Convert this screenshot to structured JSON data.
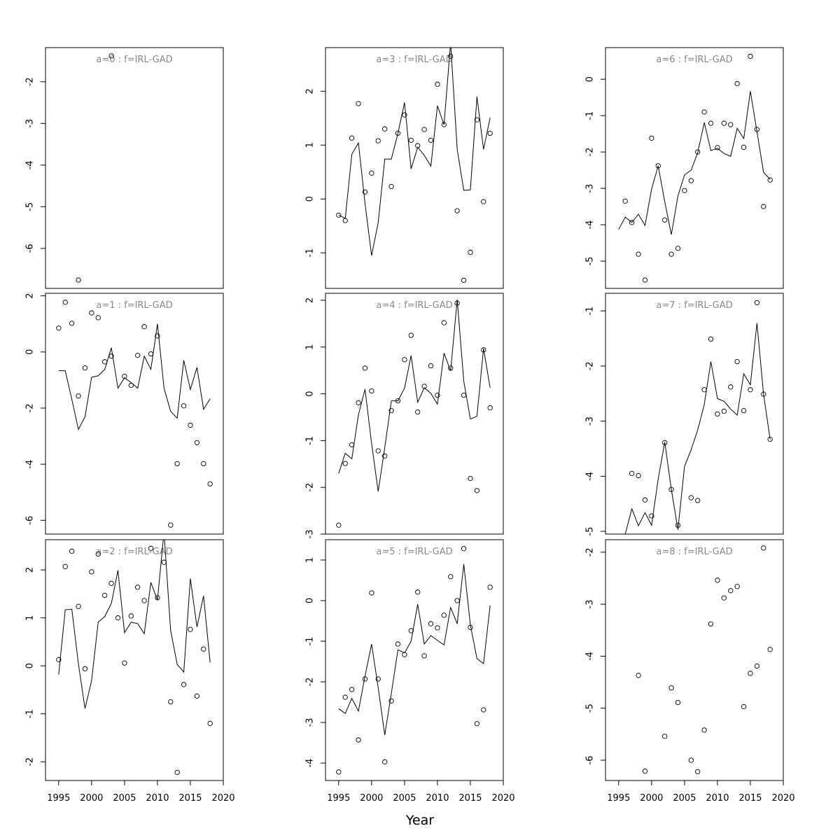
{
  "xlabel": "Year",
  "chart_data": [
    {
      "type": "line",
      "title": "a=0 : f=IRL-GAD",
      "x": [
        1995,
        1996,
        1997,
        1998,
        1999,
        2000,
        2001,
        2002,
        2003,
        2004,
        2005,
        2006,
        2007,
        2008,
        2009,
        2010,
        2011,
        2012,
        2013,
        2014,
        2015,
        2016,
        2017,
        2018
      ],
      "points": [
        null,
        null,
        null,
        -6.76,
        null,
        null,
        null,
        null,
        -1.38,
        null,
        null,
        null,
        null,
        null,
        null,
        null,
        null,
        null,
        null,
        null,
        null,
        null,
        null,
        null
      ],
      "xlim": [
        1993,
        2020
      ],
      "ylim": [
        -6.96,
        -1.18
      ],
      "yticks": [
        -6,
        -5,
        -4,
        -3,
        -2
      ]
    },
    {
      "type": "line",
      "title": "a=1 : f=IRL-GAD",
      "x": [
        1995,
        1996,
        1997,
        1998,
        1999,
        2000,
        2001,
        2002,
        2003,
        2004,
        2005,
        2006,
        2007,
        2008,
        2009,
        2010,
        2011,
        2012,
        2013,
        2014,
        2015,
        2016,
        2017,
        2018
      ],
      "points": [
        0.85,
        1.77,
        1.02,
        -1.57,
        -0.57,
        1.39,
        1.22,
        -0.35,
        -0.15,
        null,
        -0.87,
        -1.19,
        -0.12,
        0.9,
        -0.07,
        0.57,
        null,
        -6.17,
        -3.98,
        -1.92,
        -2.61,
        -3.23,
        -3.98,
        -4.7
      ],
      "fitted": [
        -0.67,
        -0.67,
        -1.69,
        -2.76,
        -2.31,
        -0.9,
        -0.85,
        -0.62,
        0.15,
        -1.29,
        -0.92,
        -1.09,
        -1.29,
        -0.15,
        -0.62,
        1.0,
        -1.29,
        -2.11,
        -2.36,
        -0.3,
        -1.34,
        -0.55,
        -2.04,
        -1.67
      ],
      "xlim": [
        1993,
        2020
      ],
      "ylim": [
        -6.49,
        2.09
      ],
      "yticks": [
        -6,
        -4,
        -2,
        0,
        2
      ]
    },
    {
      "type": "line",
      "title": "a=2 : f=IRL-GAD",
      "x": [
        1995,
        1996,
        1997,
        1998,
        1999,
        2000,
        2001,
        2002,
        2003,
        2004,
        2005,
        2006,
        2007,
        2008,
        2009,
        2010,
        2011,
        2012,
        2013,
        2014,
        2015,
        2016,
        2017,
        2018
      ],
      "points": [
        0.13,
        2.07,
        2.39,
        1.24,
        -0.06,
        1.96,
        2.33,
        1.47,
        1.72,
        1.0,
        0.06,
        1.04,
        1.64,
        1.36,
        2.45,
        1.42,
        2.16,
        -0.75,
        -2.22,
        -0.39,
        0.76,
        -0.63,
        0.35,
        -1.2
      ],
      "fitted": [
        -0.18,
        1.17,
        1.18,
        0.04,
        -0.89,
        -0.31,
        0.91,
        1.03,
        1.3,
        1.99,
        0.69,
        0.91,
        0.88,
        0.67,
        1.74,
        1.37,
        2.79,
        0.74,
        0.03,
        -0.13,
        1.82,
        0.81,
        1.46,
        0.07
      ],
      "xlim": [
        1993,
        2020
      ],
      "xticks": [
        1995,
        2000,
        2005,
        2010,
        2015,
        2020
      ],
      "ylim": [
        -2.39,
        2.63
      ],
      "yticks": [
        -2,
        -1,
        0,
        1,
        2
      ]
    },
    {
      "type": "line",
      "title": "a=3 : f=IRL-GAD",
      "x": [
        1995,
        1996,
        1997,
        1998,
        1999,
        2000,
        2001,
        2002,
        2003,
        2004,
        2005,
        2006,
        2007,
        2008,
        2009,
        2010,
        2011,
        2012,
        2013,
        2014,
        2015,
        2016,
        2017,
        2018
      ],
      "points": [
        -0.3,
        -0.4,
        1.13,
        1.77,
        0.13,
        0.48,
        1.08,
        1.3,
        0.23,
        1.22,
        1.56,
        1.09,
        0.99,
        1.29,
        1.09,
        2.13,
        1.38,
        2.65,
        -0.22,
        -1.51,
        -0.99,
        1.47,
        -0.05,
        1.22
      ],
      "fitted": [
        -0.3,
        -0.36,
        0.83,
        1.04,
        -0.08,
        -1.05,
        -0.44,
        0.74,
        0.74,
        1.22,
        1.79,
        0.56,
        0.96,
        0.81,
        0.61,
        1.73,
        1.38,
        2.9,
        0.92,
        0.16,
        0.17,
        1.9,
        0.92,
        1.51
      ],
      "xlim": [
        1993,
        2020
      ],
      "ylim": [
        -1.66,
        2.81
      ],
      "yticks": [
        -1,
        0,
        1,
        2
      ]
    },
    {
      "type": "line",
      "title": "a=4 : f=IRL-GAD",
      "x": [
        1995,
        1996,
        1997,
        1998,
        1999,
        2000,
        2001,
        2002,
        2003,
        2004,
        2005,
        2006,
        2007,
        2008,
        2009,
        2010,
        2011,
        2012,
        2013,
        2014,
        2015,
        2016,
        2017,
        2018
      ],
      "points": [
        -2.81,
        -1.49,
        -1.09,
        -0.19,
        0.55,
        0.06,
        -1.22,
        -1.33,
        -0.36,
        -0.15,
        0.73,
        1.25,
        -0.39,
        0.16,
        0.6,
        -0.03,
        1.52,
        0.55,
        1.94,
        -0.03,
        -1.81,
        -2.07,
        0.94,
        -0.3
      ],
      "fitted": [
        -1.7,
        -1.27,
        -1.39,
        -0.45,
        0.1,
        -1.06,
        -2.09,
        -1.15,
        -0.15,
        -0.15,
        0.12,
        0.82,
        -0.18,
        0.13,
        0.01,
        -0.22,
        0.87,
        0.49,
        2.01,
        0.27,
        -0.54,
        -0.48,
        0.97,
        0.13
      ],
      "xlim": [
        1993,
        2020
      ],
      "ylim": [
        -3,
        2.15
      ],
      "yticks": [
        -3,
        -2,
        -1,
        0,
        1,
        2
      ]
    },
    {
      "type": "line",
      "title": "a=5 : f=IRL-GAD",
      "x": [
        1995,
        1996,
        1997,
        1998,
        1999,
        2000,
        2001,
        2002,
        2003,
        2004,
        2005,
        2006,
        2007,
        2008,
        2009,
        2010,
        2011,
        2012,
        2013,
        2014,
        2015,
        2016,
        2017,
        2018
      ],
      "points": [
        -4.22,
        -2.38,
        -2.19,
        -3.43,
        -1.93,
        0.19,
        -1.93,
        -3.97,
        -2.47,
        -1.07,
        -1.33,
        -0.74,
        0.21,
        -1.36,
        -0.57,
        -0.67,
        -0.36,
        0.59,
        0.0,
        1.28,
        -0.66,
        -3.03,
        -2.69,
        0.33
      ],
      "fitted": [
        -2.66,
        -2.78,
        -2.41,
        -2.72,
        -1.86,
        -1.07,
        -2.14,
        -3.31,
        -2.28,
        -1.21,
        -1.29,
        -1.0,
        -0.09,
        -1.07,
        -0.86,
        -0.98,
        -1.09,
        -0.17,
        -0.57,
        0.9,
        -0.6,
        -1.43,
        -1.55,
        -0.12
      ],
      "xlim": [
        1993,
        2020
      ],
      "xticks": [
        1995,
        2000,
        2005,
        2010,
        2015,
        2020
      ],
      "ylim": [
        -4.43,
        1.5
      ],
      "yticks": [
        -4,
        -3,
        -2,
        -1,
        0,
        1
      ]
    },
    {
      "type": "line",
      "title": "a=6 : f=IRL-GAD",
      "x": [
        1995,
        1996,
        1997,
        1998,
        1999,
        2000,
        2001,
        2002,
        2003,
        2004,
        2005,
        2006,
        2007,
        2008,
        2009,
        2010,
        2011,
        2012,
        2013,
        2014,
        2015,
        2016,
        2017,
        2018
      ],
      "points": [
        null,
        -3.35,
        -3.94,
        -4.81,
        -5.52,
        -1.62,
        -2.38,
        -3.87,
        -4.81,
        -4.65,
        -3.06,
        -2.79,
        -2.0,
        -0.9,
        -1.21,
        -1.88,
        -1.21,
        -1.25,
        -0.12,
        -1.87,
        0.63,
        -1.38,
        -3.5,
        -2.77
      ],
      "fitted": [
        -4.13,
        -3.79,
        -3.94,
        -3.71,
        -4.02,
        -3.02,
        -2.38,
        -3.37,
        -4.27,
        -3.21,
        -2.63,
        -2.5,
        -2.02,
        -1.19,
        -1.96,
        -1.9,
        -2.04,
        -2.12,
        -1.35,
        -1.63,
        -0.33,
        -1.44,
        -2.56,
        -2.75
      ],
      "xlim": [
        1993,
        2020
      ],
      "ylim": [
        -5.75,
        0.87
      ],
      "yticks": [
        -5,
        -4,
        -3,
        -2,
        -1,
        0
      ]
    },
    {
      "type": "line",
      "title": "a=7 : f=IRL-GAD",
      "x": [
        1995,
        1996,
        1997,
        1998,
        1999,
        2000,
        2001,
        2002,
        2003,
        2004,
        2005,
        2006,
        2007,
        2008,
        2009,
        2010,
        2011,
        2012,
        2013,
        2014,
        2015,
        2016,
        2017,
        2018
      ],
      "points": [
        null,
        null,
        -3.95,
        -3.99,
        -4.43,
        -4.72,
        null,
        -3.39,
        -4.24,
        -4.89,
        null,
        -4.39,
        -4.44,
        -2.43,
        -1.51,
        -2.87,
        -2.82,
        -2.38,
        -1.92,
        -2.81,
        -2.43,
        -0.85,
        -2.51,
        -3.33
      ],
      "fitted": [
        -5.32,
        -5.05,
        -4.59,
        -4.9,
        -4.66,
        -4.89,
        -4.05,
        -3.38,
        -4.24,
        -4.97,
        -3.82,
        -3.52,
        -3.16,
        -2.7,
        -1.92,
        -2.59,
        -2.64,
        -2.78,
        -2.89,
        -2.14,
        -2.34,
        -1.22,
        -2.51,
        -3.33
      ],
      "xlim": [
        1993,
        2020
      ],
      "ylim": [
        -5.05,
        -0.68
      ],
      "yticks": [
        -5,
        -4,
        -3,
        -2,
        -1
      ]
    },
    {
      "type": "line",
      "title": "a=8 : f=IRL-GAD",
      "x": [
        1995,
        1996,
        1997,
        1998,
        1999,
        2000,
        2001,
        2002,
        2003,
        2004,
        2005,
        2006,
        2007,
        2008,
        2009,
        2010,
        2011,
        2012,
        2013,
        2014,
        2015,
        2016,
        2017,
        2018
      ],
      "points": [
        null,
        null,
        null,
        -4.37,
        -6.21,
        null,
        null,
        -5.54,
        -4.61,
        -4.89,
        null,
        -6.0,
        -6.22,
        -5.42,
        -3.38,
        -2.54,
        -2.88,
        -2.74,
        -2.66,
        -4.97,
        -4.33,
        -4.19,
        -1.92,
        -3.87
      ],
      "xlim": [
        1993,
        2020
      ],
      "xticks": [
        1995,
        2000,
        2005,
        2010,
        2015,
        2020
      ],
      "ylim": [
        -6.39,
        -1.76
      ],
      "yticks": [
        -6,
        -5,
        -4,
        -3,
        -2
      ]
    }
  ]
}
